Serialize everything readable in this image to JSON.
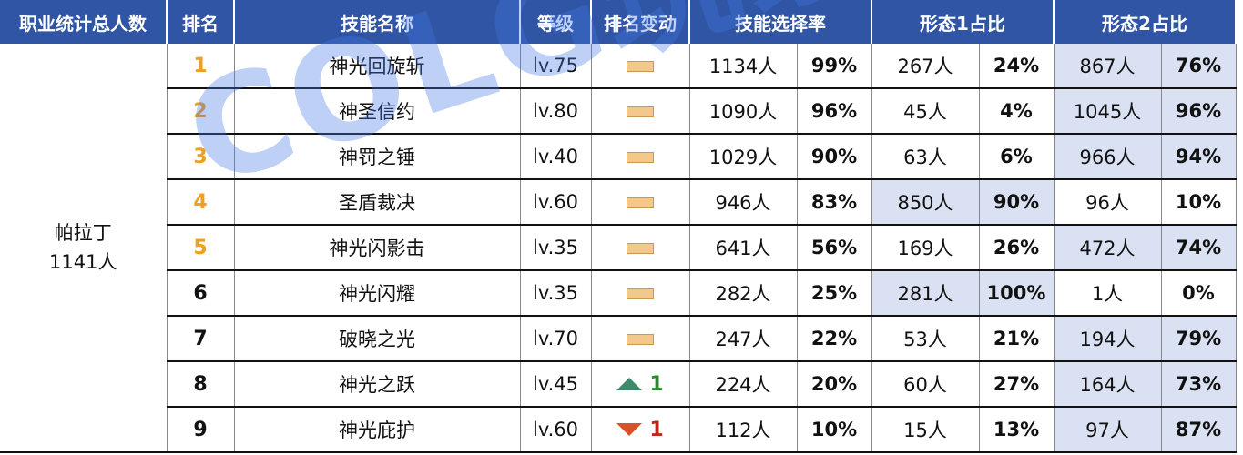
{
  "headers": {
    "total": "职业统计总人数",
    "rank": "排名",
    "skill": "技能名称",
    "level": "等级",
    "change": "排名变动",
    "select": "技能选择率",
    "form1": "形态1占比",
    "form2": "形态2占比"
  },
  "class_info": {
    "name": "帕拉丁",
    "count": "1141人"
  },
  "rows": [
    {
      "rank": "1",
      "skill": "神光回旋斩",
      "level": "lv.75",
      "change": "none",
      "change_num": "",
      "sel_count": "1134人",
      "sel_pct": "99%",
      "f1_count": "267人",
      "f1_pct": "24%",
      "f2_count": "867人",
      "f2_pct": "76%"
    },
    {
      "rank": "2",
      "skill": "神圣信约",
      "level": "lv.80",
      "change": "none",
      "change_num": "",
      "sel_count": "1090人",
      "sel_pct": "96%",
      "f1_count": "45人",
      "f1_pct": "4%",
      "f2_count": "1045人",
      "f2_pct": "96%"
    },
    {
      "rank": "3",
      "skill": "神罚之锤",
      "level": "lv.40",
      "change": "none",
      "change_num": "",
      "sel_count": "1029人",
      "sel_pct": "90%",
      "f1_count": "63人",
      "f1_pct": "6%",
      "f2_count": "966人",
      "f2_pct": "94%"
    },
    {
      "rank": "4",
      "skill": "圣盾裁决",
      "level": "lv.60",
      "change": "none",
      "change_num": "",
      "sel_count": "946人",
      "sel_pct": "83%",
      "f1_count": "850人",
      "f1_pct": "90%",
      "f2_count": "96人",
      "f2_pct": "10%"
    },
    {
      "rank": "5",
      "skill": "神光闪影击",
      "level": "lv.35",
      "change": "none",
      "change_num": "",
      "sel_count": "641人",
      "sel_pct": "56%",
      "f1_count": "169人",
      "f1_pct": "26%",
      "f2_count": "472人",
      "f2_pct": "74%"
    },
    {
      "rank": "6",
      "skill": "神光闪耀",
      "level": "lv.35",
      "change": "none",
      "change_num": "",
      "sel_count": "282人",
      "sel_pct": "25%",
      "f1_count": "281人",
      "f1_pct": "100%",
      "f2_count": "1人",
      "f2_pct": "0%"
    },
    {
      "rank": "7",
      "skill": "破晓之光",
      "level": "lv.70",
      "change": "none",
      "change_num": "",
      "sel_count": "247人",
      "sel_pct": "22%",
      "f1_count": "53人",
      "f1_pct": "21%",
      "f2_count": "194人",
      "f2_pct": "79%"
    },
    {
      "rank": "8",
      "skill": "神光之跃",
      "level": "lv.45",
      "change": "up",
      "change_num": "1",
      "sel_count": "224人",
      "sel_pct": "20%",
      "f1_count": "60人",
      "f1_pct": "27%",
      "f2_count": "164人",
      "f2_pct": "73%"
    },
    {
      "rank": "9",
      "skill": "神光庇护",
      "level": "lv.60",
      "change": "down",
      "change_num": "1",
      "sel_count": "112人",
      "sel_pct": "10%",
      "f1_count": "15人",
      "f1_pct": "13%",
      "f2_count": "97人",
      "f2_pct": "87%"
    }
  ],
  "watermark": "COLG玩家社区",
  "colors": {
    "header_bg": "#2f55a4",
    "shade": "#d9e1f2",
    "top_rank": "#f0a020"
  }
}
